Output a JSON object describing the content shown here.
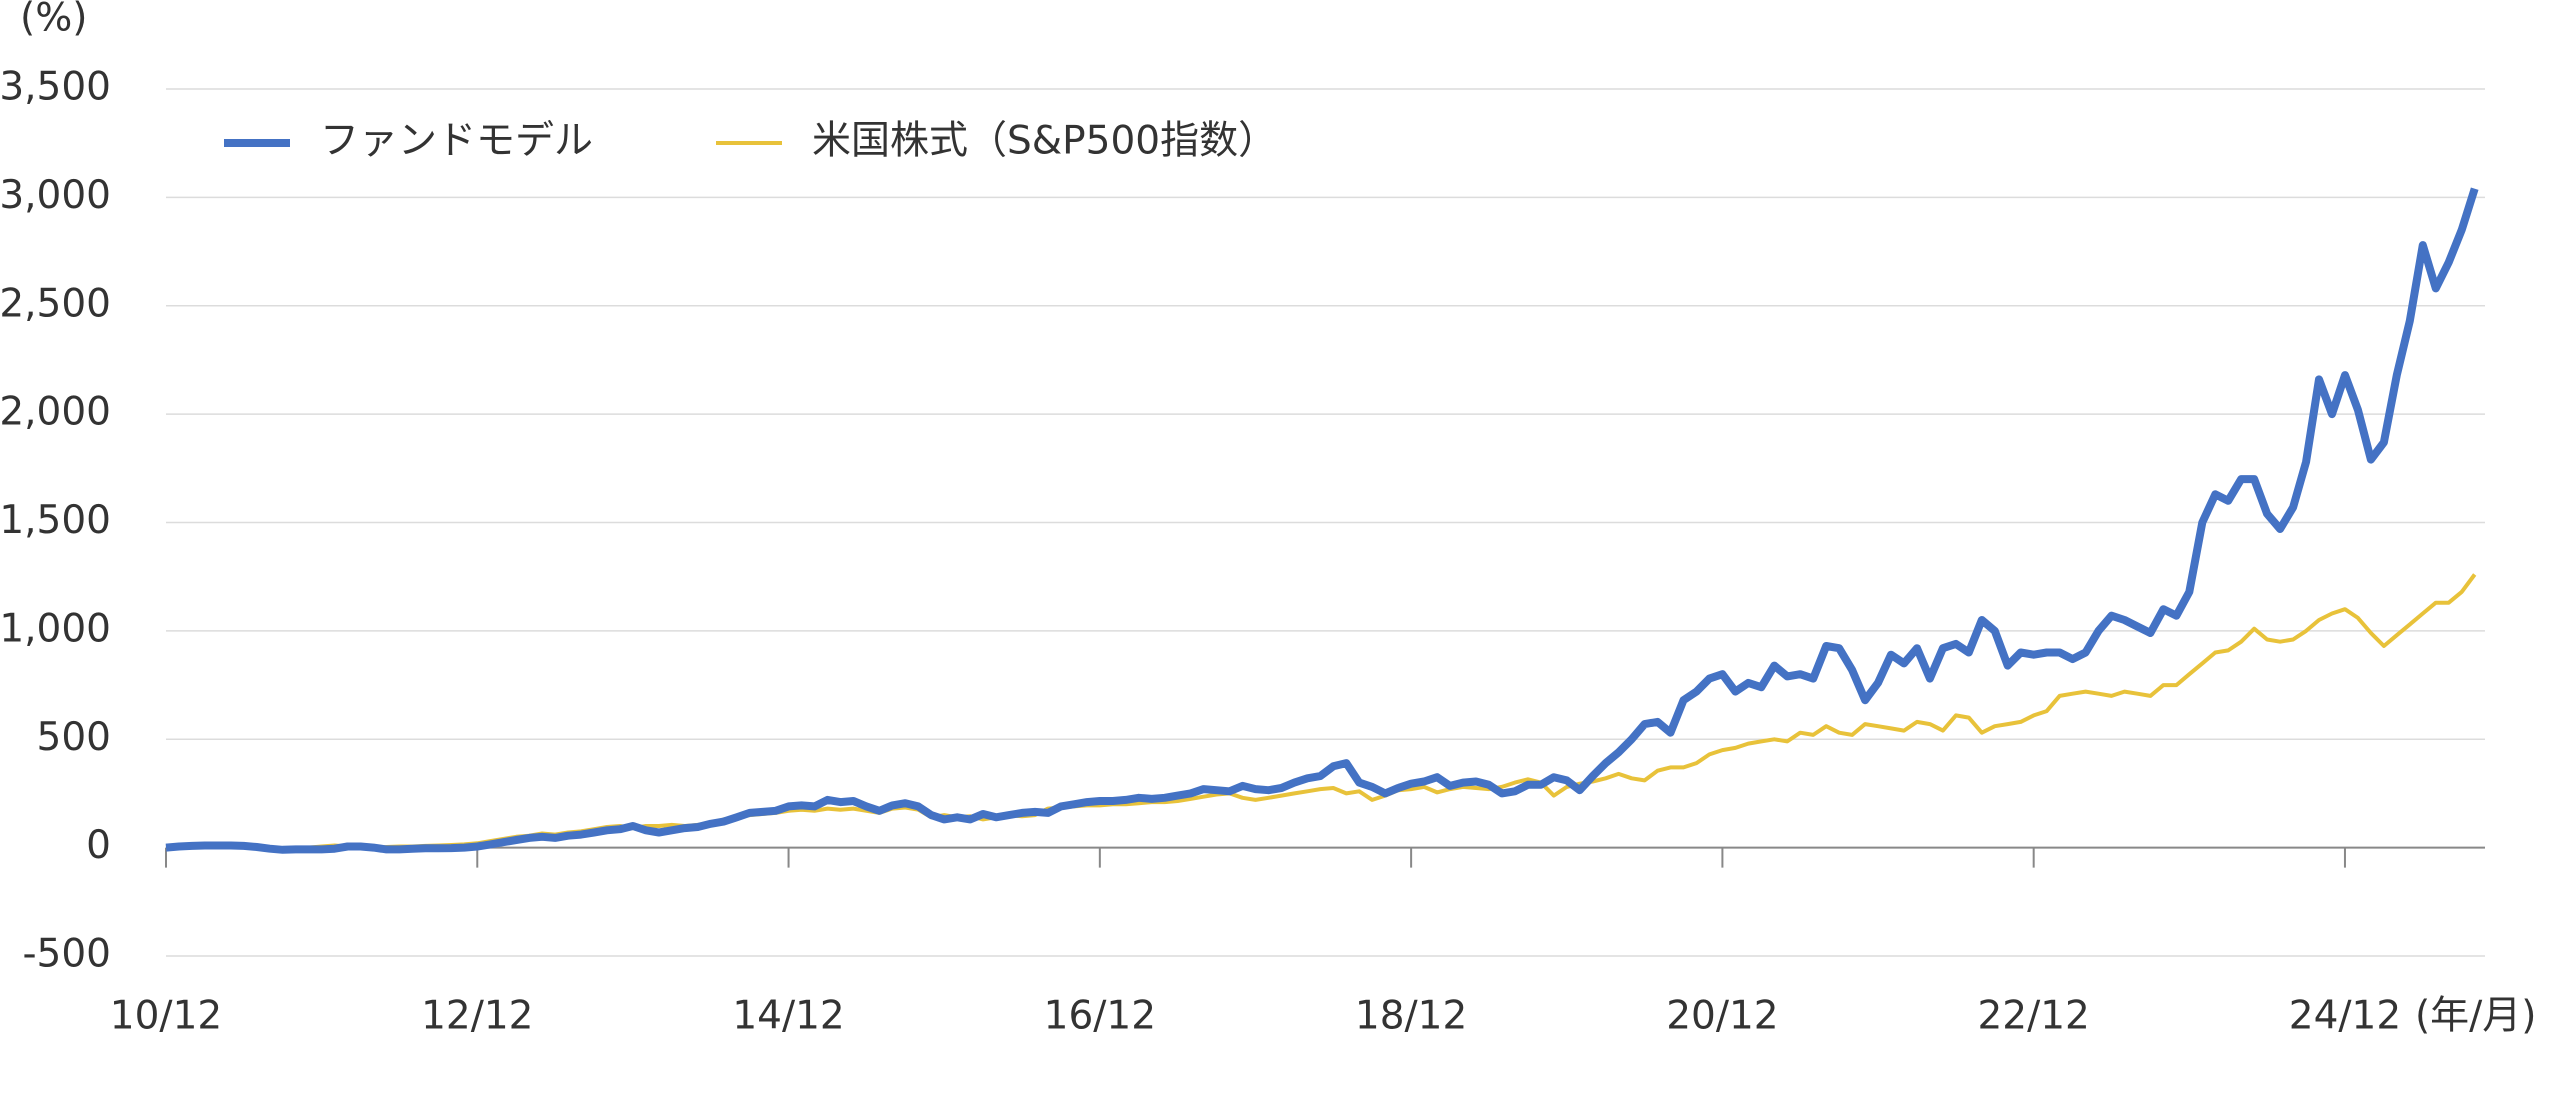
{
  "chart_data": {
    "type": "line",
    "y_label": "(%)",
    "x_label": "(年/月)",
    "legend": "upper-left",
    "grid": true,
    "ylim": [
      -500,
      3500
    ],
    "yticks": [
      -500,
      0,
      500,
      {
        "value": 1000,
        "label": "1,000"
      },
      {
        "value": 1500,
        "label": "1,500"
      },
      {
        "value": 2000,
        "label": "2,000"
      },
      {
        "value": 2500,
        "label": "2,500"
      },
      {
        "value": 3000,
        "label": "3,000"
      },
      {
        "value": 3500,
        "label": "3,500"
      }
    ],
    "categories": [
      "10/12",
      null,
      null,
      null,
      null,
      null,
      null,
      null,
      null,
      null,
      null,
      null,
      null,
      null,
      null,
      null,
      null,
      null,
      null,
      null,
      null,
      null,
      null,
      null,
      "12/12",
      null,
      null,
      null,
      null,
      null,
      null,
      null,
      null,
      null,
      null,
      null,
      null,
      null,
      null,
      null,
      null,
      null,
      null,
      null,
      null,
      null,
      null,
      null,
      "14/12",
      null,
      null,
      null,
      null,
      null,
      null,
      null,
      null,
      null,
      null,
      null,
      null,
      null,
      null,
      null,
      null,
      null,
      null,
      null,
      null,
      null,
      null,
      null,
      "16/12",
      null,
      null,
      null,
      null,
      null,
      null,
      null,
      null,
      null,
      null,
      null,
      null,
      null,
      null,
      null,
      null,
      null,
      null,
      null,
      null,
      null,
      null,
      null,
      "18/12",
      null,
      null,
      null,
      null,
      null,
      null,
      null,
      null,
      null,
      null,
      null,
      null,
      null,
      null,
      null,
      null,
      null,
      null,
      null,
      null,
      null,
      null,
      null,
      "20/12",
      null,
      null,
      null,
      null,
      null,
      null,
      null,
      null,
      null,
      null,
      null,
      null,
      null,
      null,
      null,
      null,
      null,
      null,
      null,
      null,
      null,
      null,
      null,
      "22/12",
      null,
      null,
      null,
      null,
      null,
      null,
      null,
      null,
      null,
      null,
      null,
      null,
      null,
      null,
      null,
      null,
      null,
      null,
      null,
      null,
      null,
      null,
      null,
      "24/12",
      null,
      null,
      null,
      null,
      null,
      null,
      null,
      null,
      null,
      null
    ],
    "series": [
      {
        "name": "ファンドモデル",
        "color": "#4472c4",
        "values": [
          0,
          5,
          8,
          10,
          10,
          10,
          8,
          3,
          -5,
          -10,
          -8,
          -8,
          -8,
          -5,
          5,
          5,
          0,
          -8,
          -8,
          -5,
          -3,
          -3,
          -2,
          0,
          5,
          15,
          25,
          35,
          45,
          50,
          45,
          55,
          60,
          70,
          80,
          85,
          100,
          80,
          70,
          80,
          90,
          95,
          110,
          120,
          140,
          160,
          165,
          170,
          190,
          195,
          190,
          220,
          210,
          215,
          190,
          170,
          195,
          205,
          190,
          150,
          130,
          140,
          130,
          155,
          140,
          150,
          160,
          165,
          160,
          190,
          200,
          210,
          215,
          215,
          220,
          230,
          225,
          230,
          240,
          250,
          270,
          265,
          260,
          285,
          270,
          265,
          275,
          300,
          320,
          330,
          375,
          390,
          300,
          280,
          250,
          275,
          295,
          305,
          325,
          285,
          300,
          305,
          290,
          250,
          260,
          290,
          290,
          325,
          310,
          265,
          330,
          390,
          440,
          500,
          570,
          580,
          530,
          680,
          720,
          780,
          800,
          720,
          760,
          740,
          840,
          790,
          800,
          780,
          930,
          920,
          820,
          680,
          760,
          890,
          850,
          920,
          780,
          920,
          940,
          900,
          1050,
          1000,
          840,
          900,
          890,
          900,
          900,
          870,
          900,
          1000,
          1070,
          1050,
          1020,
          990,
          1100,
          1070,
          1180,
          1500,
          1630,
          1600,
          1700,
          1700,
          1540,
          1470,
          1570,
          1780,
          2160,
          2000,
          2180,
          2020,
          1790,
          1870,
          2180,
          2430,
          2780,
          2580,
          2700,
          2850,
          3040
        ]
      },
      {
        "name": "米国株式（S&P500指数）",
        "color": "#e8c23a",
        "values": [
          0,
          3,
          5,
          8,
          8,
          8,
          5,
          0,
          -8,
          -5,
          -3,
          0,
          5,
          10,
          5,
          0,
          0,
          3,
          5,
          5,
          8,
          10,
          12,
          15,
          20,
          30,
          40,
          50,
          55,
          65,
          60,
          70,
          75,
          85,
          95,
          100,
          90,
          100,
          100,
          105,
          100,
          105,
          110,
          130,
          140,
          150,
          155,
          160,
          170,
          175,
          170,
          180,
          175,
          180,
          170,
          160,
          180,
          185,
          175,
          140,
          150,
          140,
          145,
          130,
          140,
          150,
          145,
          150,
          180,
          185,
          190,
          195,
          195,
          200,
          200,
          205,
          210,
          210,
          215,
          225,
          235,
          245,
          250,
          230,
          220,
          230,
          240,
          250,
          260,
          270,
          275,
          250,
          260,
          220,
          240,
          265,
          270,
          280,
          255,
          270,
          280,
          275,
          270,
          280,
          300,
          315,
          300,
          240,
          280,
          295,
          305,
          320,
          340,
          320,
          310,
          355,
          370,
          370,
          390,
          430,
          450,
          460,
          480,
          490,
          500,
          490,
          530,
          520,
          560,
          530,
          520,
          570,
          560,
          550,
          540,
          580,
          570,
          540,
          610,
          600,
          530,
          560,
          570,
          580,
          610,
          630,
          700,
          710,
          720,
          710,
          700,
          720,
          710,
          700,
          750,
          750,
          800,
          850,
          900,
          910,
          950,
          1010,
          960,
          950,
          960,
          1000,
          1050,
          1080,
          1100,
          1060,
          990,
          930,
          980,
          1030,
          1080,
          1130,
          1130,
          1180,
          1260
        ]
      }
    ]
  }
}
